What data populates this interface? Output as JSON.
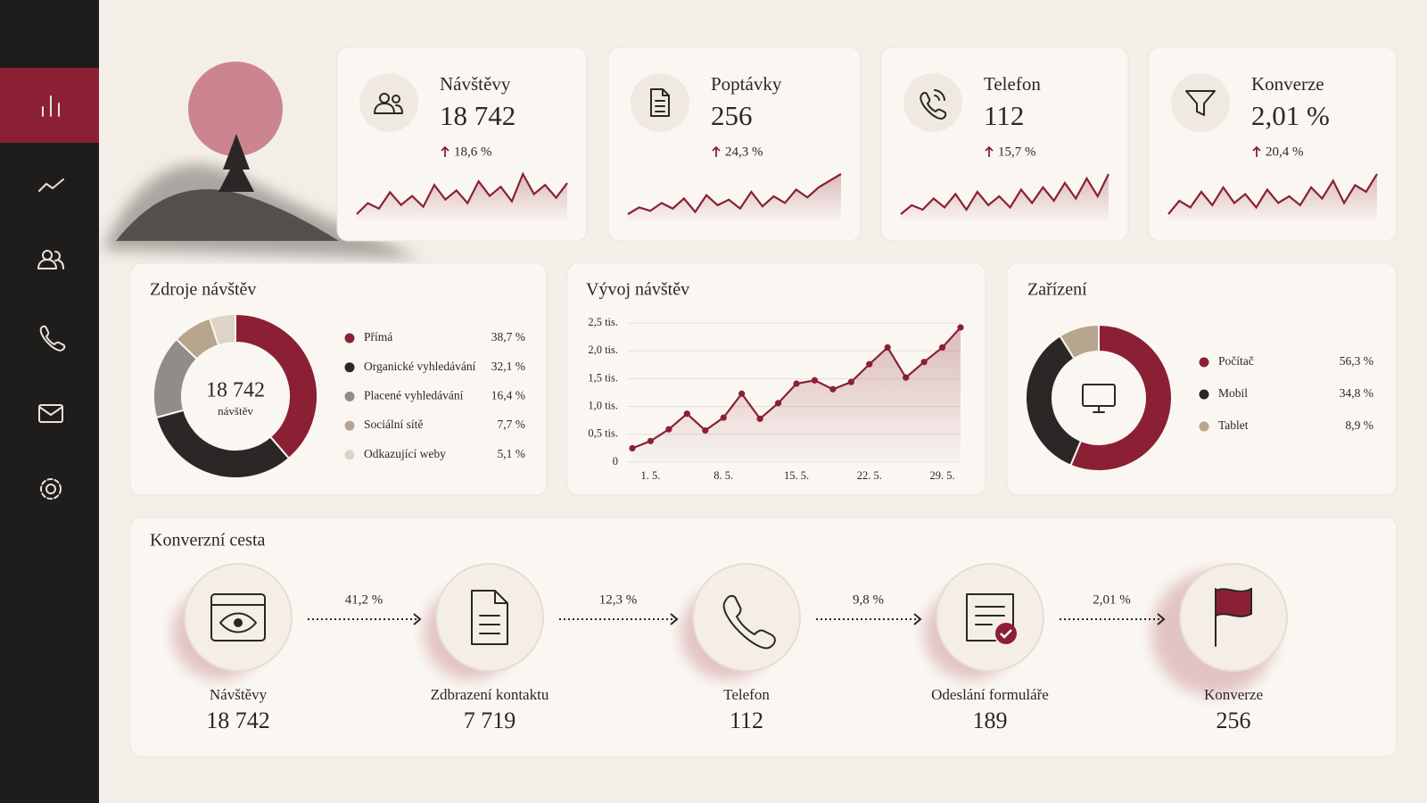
{
  "kpis": [
    {
      "label": "Návštěvy",
      "value": "18 742",
      "change": "18,6 %",
      "trend": [
        30,
        36,
        33,
        42,
        35,
        40,
        34,
        46,
        38,
        43,
        36,
        48,
        40,
        45,
        37,
        52,
        41,
        46,
        39,
        47
      ]
    },
    {
      "label": "Poptávky",
      "value": "256",
      "change": "24,3 %",
      "trend": [
        28,
        34,
        31,
        38,
        33,
        42,
        30,
        45,
        36,
        41,
        33,
        48,
        35,
        44,
        38,
        50,
        43,
        52,
        58,
        64
      ]
    },
    {
      "label": "Telefon",
      "value": "112",
      "change": "15,7 %",
      "trend": [
        26,
        34,
        30,
        40,
        32,
        44,
        30,
        46,
        34,
        42,
        32,
        48,
        36,
        50,
        38,
        54,
        40,
        58,
        42,
        62
      ]
    },
    {
      "label": "Konverze",
      "value": "2,01 %",
      "change": "20,4 %",
      "trend": [
        30,
        42,
        36,
        50,
        38,
        54,
        40,
        48,
        36,
        52,
        40,
        46,
        38,
        54,
        44,
        60,
        40,
        56,
        50,
        66
      ]
    }
  ],
  "sources": {
    "title": "Zdroje návštěv",
    "center_value": "18 742",
    "center_label": "návštěv",
    "categories": [
      "Přímá",
      "Organické vyhledávání",
      "Placené vyhledávání",
      "Sociální sítě",
      "Odkazující weby"
    ],
    "values": [
      38.7,
      32.1,
      16.4,
      7.7,
      5.1
    ],
    "value_labels": [
      "38,7 %",
      "32,1 %",
      "16,4 %",
      "7,7 %",
      "5,1 %"
    ],
    "colors": [
      "#8b2035",
      "#2a2726",
      "#8f8c89",
      "#b7a58e",
      "#ddd3c6"
    ]
  },
  "trend": {
    "title": "Vývoj návštěv",
    "categories": [
      null,
      "1. 5.",
      null,
      null,
      null,
      "8. 5.",
      null,
      null,
      null,
      "15. 5.",
      null,
      null,
      null,
      "22. 5.",
      null,
      null,
      null,
      "29. 5.",
      null
    ],
    "values": [
      0.25,
      0.38,
      0.59,
      0.87,
      0.57,
      0.8,
      1.23,
      0.78,
      1.06,
      1.41,
      1.47,
      1.31,
      1.44,
      1.76,
      2.06,
      1.52,
      1.8,
      2.06,
      2.42
    ],
    "ylim": [
      0,
      2.5
    ],
    "yticks": [
      0,
      {
        "value": 0.5,
        "label": "0,5 tis."
      },
      {
        "value": 1,
        "label": "1,0 tis."
      },
      {
        "value": 1.5,
        "label": "1,5 tis."
      },
      {
        "value": 2,
        "label": "2,0 tis."
      },
      {
        "value": 2.5,
        "label": "2,5 tis."
      }
    ],
    "color": "#8b2035",
    "grid": true
  },
  "devices": {
    "title": "Zařízení",
    "categories": [
      "Počítač",
      "Mobil",
      "Tablet"
    ],
    "values": [
      56.3,
      34.8,
      8.9
    ],
    "value_labels": [
      "56,3 %",
      "34,8 %",
      "8,9 %"
    ],
    "colors": [
      "#8b2035",
      "#2a2726",
      "#b7a58e"
    ]
  },
  "funnel": {
    "title": "Konverzní cesta",
    "steps": [
      {
        "label": "Návštěvy",
        "value": "18 742"
      },
      {
        "label": "Zdbrazení kontaktu",
        "value": "7 719"
      },
      {
        "label": "Telefon",
        "value": "112"
      },
      {
        "label": "Odeslání formuláře",
        "value": "189"
      },
      {
        "label": "Konverze",
        "value": "256"
      }
    ],
    "rates": [
      "41,2 %",
      "12,3 %",
      "9,8 %",
      "2,01 %"
    ]
  }
}
